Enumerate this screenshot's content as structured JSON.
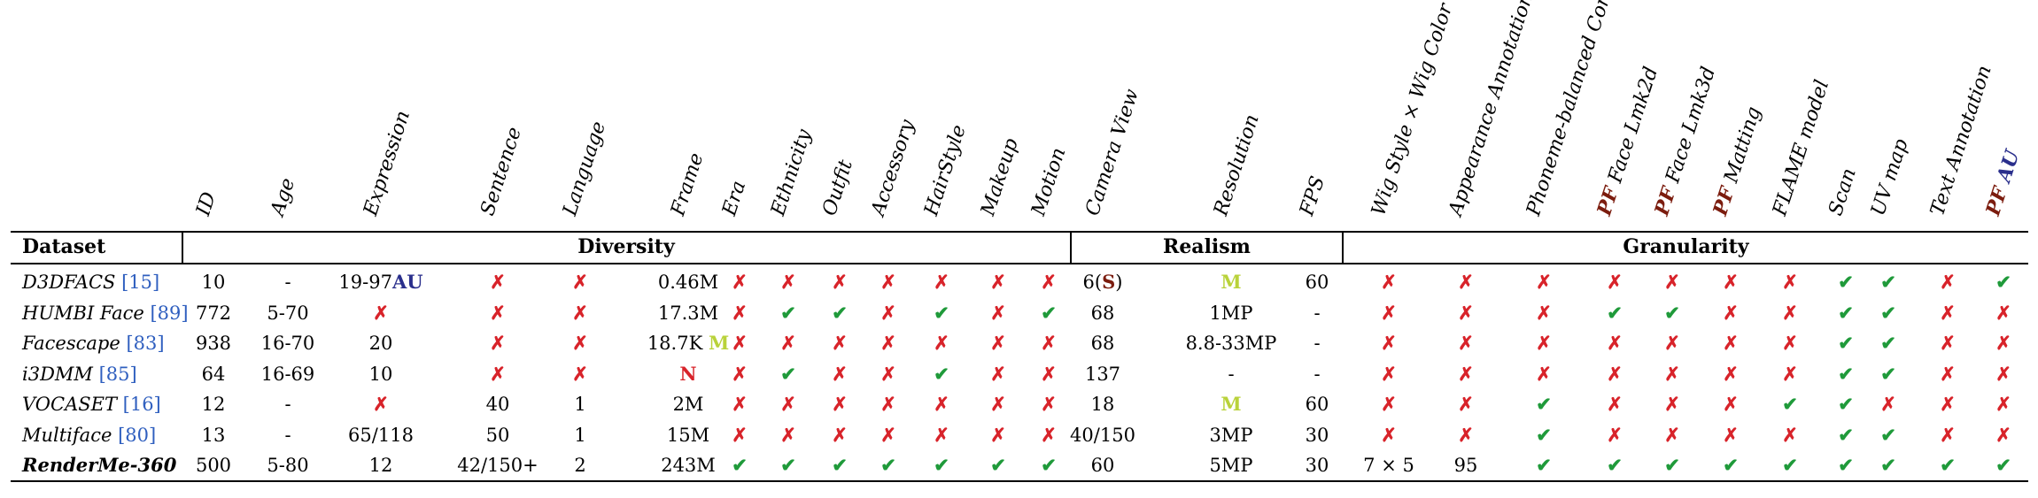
{
  "columns": [
    {
      "key": "id",
      "label": "ID"
    },
    {
      "key": "age",
      "label": "Age"
    },
    {
      "key": "expression",
      "label": "Expression"
    },
    {
      "key": "sentence",
      "label": "Sentence"
    },
    {
      "key": "language",
      "label": "Language"
    },
    {
      "key": "frame",
      "label": "Frame"
    },
    {
      "key": "era",
      "label": "Era"
    },
    {
      "key": "ethnicity",
      "label": "Ethnicity"
    },
    {
      "key": "outfit",
      "label": "Outfit"
    },
    {
      "key": "accessory",
      "label": "Accessory"
    },
    {
      "key": "hairstyle",
      "label": "HairStyle"
    },
    {
      "key": "makeup",
      "label": "Makeup"
    },
    {
      "key": "motion",
      "label": "Motion"
    },
    {
      "key": "camera_view",
      "label": "Camera View"
    },
    {
      "key": "resolution",
      "label": "Resolution"
    },
    {
      "key": "fps",
      "label": "FPS"
    },
    {
      "key": "wig",
      "label": "Wig Style × Wig Color"
    },
    {
      "key": "appearance",
      "label": "Appearance Annotation"
    },
    {
      "key": "phoneme",
      "label": "Phoneme-balanced Corpus"
    },
    {
      "key": "lmk2d",
      "label": " Face Lmk2d",
      "prefix": "PF"
    },
    {
      "key": "lmk3d",
      "label": " Face Lmk3d",
      "prefix": "PF"
    },
    {
      "key": "matting",
      "label": " Matting",
      "prefix": "PF"
    },
    {
      "key": "flame",
      "label": "FLAME model"
    },
    {
      "key": "scan",
      "label": "Scan"
    },
    {
      "key": "uv",
      "label": "UV map"
    },
    {
      "key": "text_ann",
      "label": "Text Annotation"
    },
    {
      "key": "pfau",
      "label": "",
      "prefix": "PF",
      "suffix": "AU"
    }
  ],
  "group_header": {
    "dataset": "Dataset",
    "diversity": "Diversity",
    "realism": "Realism",
    "granularity": "Granularity"
  },
  "rows": [
    {
      "name": "D3DFACS",
      "ref": "[15]",
      "bold": false,
      "cells": [
        "10",
        "-",
        {
          "t": "19-97",
          "au": "AU"
        },
        "x",
        "x",
        "0.46M",
        "x",
        "x",
        "x",
        "x",
        "x",
        "x",
        "x",
        {
          "t": "6(",
          "s": "S",
          "e": ")"
        },
        {
          "hl": "M"
        },
        "60",
        "x",
        "x",
        "x",
        "x",
        "x",
        "x",
        "x",
        "ck",
        "ck",
        "x",
        "ck"
      ]
    },
    {
      "name": "HUMBI Face",
      "ref": "[89]",
      "bold": false,
      "cells": [
        "772",
        "5-70",
        "x",
        "x",
        "x",
        "17.3M",
        "x",
        "ck",
        "ck",
        "x",
        "ck",
        "x",
        "ck",
        "68",
        "1MP",
        "-",
        "x",
        "x",
        "x",
        "ck",
        "ck",
        "x",
        "x",
        "ck",
        "ck",
        "x",
        "x"
      ]
    },
    {
      "name": "Facescape",
      "ref": "[83]",
      "bold": false,
      "cells": [
        "938",
        "16-70",
        "20",
        "x",
        "x",
        {
          "t": "18.7K ",
          "hl": "M"
        },
        "x",
        "x",
        "x",
        "x",
        "x",
        "x",
        "x",
        "68",
        "8.8-33MP",
        "-",
        "x",
        "x",
        "x",
        "x",
        "x",
        "x",
        "x",
        "ck",
        "ck",
        "x",
        "x"
      ]
    },
    {
      "name": "i3DMM",
      "ref": "[85]",
      "bold": false,
      "cells": [
        "64",
        "16-69",
        "10",
        "x",
        "x",
        {
          "red": "N"
        },
        "x",
        "ck",
        "x",
        "x",
        "ck",
        "x",
        "x",
        "137",
        "-",
        "-",
        "x",
        "x",
        "x",
        "x",
        "x",
        "x",
        "x",
        "ck",
        "ck",
        "x",
        "x"
      ]
    },
    {
      "name": "VOCASET",
      "ref": "[16]",
      "bold": false,
      "cells": [
        "12",
        "-",
        "x",
        "40",
        "1",
        "2M",
        "x",
        "x",
        "x",
        "x",
        "x",
        "x",
        "x",
        "18",
        {
          "hl": "M"
        },
        "60",
        "x",
        "x",
        "ck",
        "x",
        "x",
        "x",
        "ck",
        "ck",
        "x",
        "x",
        "x"
      ]
    },
    {
      "name": "Multiface",
      "ref": "[80]",
      "bold": false,
      "cells": [
        "13",
        "-",
        "65/118",
        "50",
        "1",
        "15M",
        "x",
        "x",
        "x",
        "x",
        "x",
        "x",
        "x",
        "40/150",
        "3MP",
        "30",
        "x",
        "x",
        "ck",
        "x",
        "x",
        "x",
        "x",
        "ck",
        "ck",
        "x",
        "x"
      ]
    },
    {
      "name": "RenderMe-360",
      "ref": "",
      "bold": true,
      "cells": [
        "500",
        "5-80",
        "12",
        "42/150+",
        "2",
        "243M",
        "ck",
        "ck",
        "ck",
        "ck",
        "ck",
        "ck",
        "ck",
        "60",
        "5MP",
        "30",
        "7 × 5",
        "95",
        "ck",
        "ck",
        "ck",
        "ck",
        "ck",
        "ck",
        "ck",
        "ck",
        "ck"
      ]
    }
  ]
}
